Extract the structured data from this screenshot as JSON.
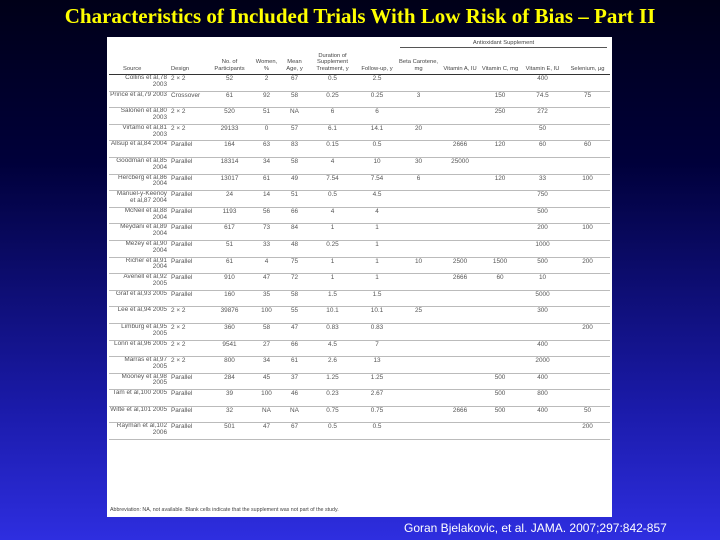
{
  "slide": {
    "title": "Characteristics of Included Trials With Low Risk of Bias – Part II",
    "citation": "Goran Bjelakovic, et al. JAMA. 2007;297:842-857",
    "title_color": "#ffff00"
  },
  "table": {
    "group_header": "Antioxidant Supplement",
    "columns": {
      "source": "Source",
      "design": "Design",
      "participants": "No. of Participants",
      "women": "Women, %",
      "age": "Mean Age, y",
      "duration": "Duration of Supplement Treatment, y",
      "followup": "Follow-up, y",
      "beta": "Beta Carotene, mg",
      "vita": "Vitamin A, IU",
      "vitc": "Vitamin C, mg",
      "vite": "Vitamin E, IU",
      "selenium": "Selenium, μg"
    },
    "rows": [
      {
        "source": "Collins et al,78 2003",
        "design": "2 × 2",
        "participants": "52",
        "women": "2",
        "age": "67",
        "duration": "0.5",
        "followup": "2.5",
        "beta": "",
        "vita": "",
        "vitc": "",
        "vite": "400",
        "selenium": ""
      },
      {
        "source": "Prince et al,79 2003",
        "design": "Crossover",
        "participants": "61",
        "women": "92",
        "age": "58",
        "duration": "0.25",
        "followup": "0.25",
        "beta": "3",
        "vita": "",
        "vitc": "150",
        "vite": "74.5",
        "selenium": "75"
      },
      {
        "source": "Salonen et al,80 2003",
        "design": "2 × 2",
        "participants": "520",
        "women": "51",
        "age": "NA",
        "duration": "6",
        "followup": "6",
        "beta": "",
        "vita": "",
        "vitc": "250",
        "vite": "272",
        "selenium": ""
      },
      {
        "source": "Virtamo et al,81 2003",
        "design": "2 × 2",
        "participants": "29133",
        "women": "0",
        "age": "57",
        "duration": "6.1",
        "followup": "14.1",
        "beta": "20",
        "vita": "",
        "vitc": "",
        "vite": "50",
        "selenium": ""
      },
      {
        "source": "Allsup et al,84 2004",
        "design": "Parallel",
        "participants": "164",
        "women": "63",
        "age": "83",
        "duration": "0.15",
        "followup": "0.5",
        "beta": "",
        "vita": "2666",
        "vitc": "120",
        "vite": "60",
        "selenium": "60"
      },
      {
        "source": "Goodman et al,85 2004",
        "design": "Parallel",
        "participants": "18314",
        "women": "34",
        "age": "58",
        "duration": "4",
        "followup": "10",
        "beta": "30",
        "vita": "25000",
        "vitc": "",
        "vite": "",
        "selenium": ""
      },
      {
        "source": "Hercberg et al,86 2004",
        "design": "Parallel",
        "participants": "13017",
        "women": "61",
        "age": "49",
        "duration": "7.54",
        "followup": "7.54",
        "beta": "6",
        "vita": "",
        "vitc": "120",
        "vite": "33",
        "selenium": "100"
      },
      {
        "source": "Manuel-y-Keenoy et al,87 2004",
        "design": "Parallel",
        "participants": "24",
        "women": "14",
        "age": "51",
        "duration": "0.5",
        "followup": "4.5",
        "beta": "",
        "vita": "",
        "vitc": "",
        "vite": "750",
        "selenium": ""
      },
      {
        "source": "McNeil et al,88 2004",
        "design": "Parallel",
        "participants": "1193",
        "women": "56",
        "age": "66",
        "duration": "4",
        "followup": "4",
        "beta": "",
        "vita": "",
        "vitc": "",
        "vite": "500",
        "selenium": ""
      },
      {
        "source": "Meydani et al,89 2004",
        "design": "Parallel",
        "participants": "617",
        "women": "73",
        "age": "84",
        "duration": "1",
        "followup": "1",
        "beta": "",
        "vita": "",
        "vitc": "",
        "vite": "200",
        "selenium": "100"
      },
      {
        "source": "Mezey et al,90 2004",
        "design": "Parallel",
        "participants": "51",
        "women": "33",
        "age": "48",
        "duration": "0.25",
        "followup": "1",
        "beta": "",
        "vita": "",
        "vitc": "",
        "vite": "1000",
        "selenium": ""
      },
      {
        "source": "Richer et al,91 2004",
        "design": "Parallel",
        "participants": "61",
        "women": "4",
        "age": "75",
        "duration": "1",
        "followup": "1",
        "beta": "10",
        "vita": "2500",
        "vitc": "1500",
        "vite": "500",
        "selenium": "200"
      },
      {
        "source": "Avenell et al,92 2005",
        "design": "Parallel",
        "participants": "910",
        "women": "47",
        "age": "72",
        "duration": "1",
        "followup": "1",
        "beta": "",
        "vita": "2666",
        "vitc": "60",
        "vite": "10",
        "selenium": ""
      },
      {
        "source": "Graf et al,93 2005",
        "design": "Parallel",
        "participants": "160",
        "women": "35",
        "age": "58",
        "duration": "1.5",
        "followup": "1.5",
        "beta": "",
        "vita": "",
        "vitc": "",
        "vite": "5000",
        "selenium": ""
      },
      {
        "source": "Lee et al,94 2005",
        "design": "2 × 2",
        "participants": "39876",
        "women": "100",
        "age": "55",
        "duration": "10.1",
        "followup": "10.1",
        "beta": "25",
        "vita": "",
        "vitc": "",
        "vite": "300",
        "selenium": ""
      },
      {
        "source": "Limburg et al,95 2005",
        "design": "2 × 2",
        "participants": "360",
        "women": "58",
        "age": "47",
        "duration": "0.83",
        "followup": "0.83",
        "beta": "",
        "vita": "",
        "vitc": "",
        "vite": "",
        "selenium": "200"
      },
      {
        "source": "Lonn et al,96 2005",
        "design": "2 × 2",
        "participants": "9541",
        "women": "27",
        "age": "66",
        "duration": "4.5",
        "followup": "7",
        "beta": "",
        "vita": "",
        "vitc": "",
        "vite": "400",
        "selenium": ""
      },
      {
        "source": "Marras et al,97 2005",
        "design": "2 × 2",
        "participants": "800",
        "women": "34",
        "age": "61",
        "duration": "2.6",
        "followup": "13",
        "beta": "",
        "vita": "",
        "vitc": "",
        "vite": "2000",
        "selenium": ""
      },
      {
        "source": "Mooney et al,98 2005",
        "design": "Parallel",
        "participants": "284",
        "women": "45",
        "age": "37",
        "duration": "1.25",
        "followup": "1.25",
        "beta": "",
        "vita": "",
        "vitc": "500",
        "vite": "400",
        "selenium": ""
      },
      {
        "source": "Tam et al,100 2005",
        "design": "Parallel",
        "participants": "39",
        "women": "100",
        "age": "46",
        "duration": "0.23",
        "followup": "2.67",
        "beta": "",
        "vita": "",
        "vitc": "500",
        "vite": "800",
        "selenium": ""
      },
      {
        "source": "Witte et al,101 2005",
        "design": "Parallel",
        "participants": "32",
        "women": "NA",
        "age": "NA",
        "duration": "0.75",
        "followup": "0.75",
        "beta": "",
        "vita": "2666",
        "vitc": "500",
        "vite": "400",
        "selenium": "50"
      },
      {
        "source": "Rayman et al,102 2006",
        "design": "Parallel",
        "participants": "501",
        "women": "47",
        "age": "67",
        "duration": "0.5",
        "followup": "0.5",
        "beta": "",
        "vita": "",
        "vitc": "",
        "vite": "",
        "selenium": "200"
      }
    ],
    "footnote": "Abbreviation: NA, not available. Blank cells indicate that the supplement was not part of the study."
  }
}
